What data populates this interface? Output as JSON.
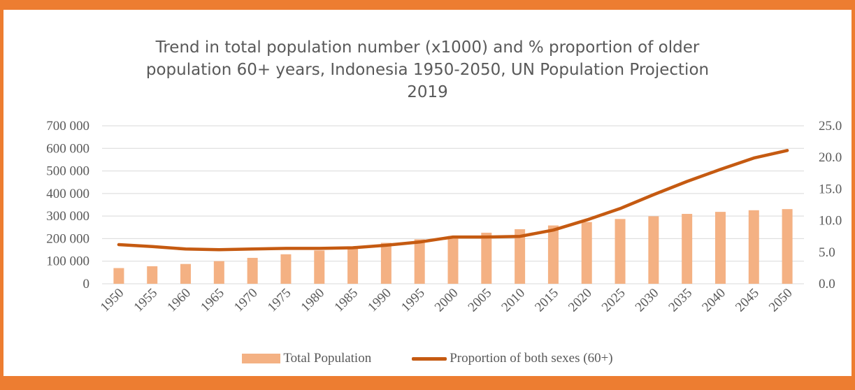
{
  "chart_data": {
    "type": "bar",
    "title_lines": [
      "Trend in total population number (x1000) and % proportion of older",
      "population 60+ years, Indonesia 1950-2050, UN Population Projection",
      "2019"
    ],
    "categories": [
      "1950",
      "1955",
      "1960",
      "1965",
      "1970",
      "1975",
      "1980",
      "1985",
      "1990",
      "1995",
      "2000",
      "2005",
      "2010",
      "2015",
      "2020",
      "2025",
      "2030",
      "2035",
      "2040",
      "2045",
      "2050"
    ],
    "series": [
      {
        "name": "Total Population",
        "type": "bar",
        "axis": "left",
        "color": "#F4B183",
        "values": [
          69543,
          77712,
          87752,
          100309,
          114793,
          130680,
          147490,
          165012,
          181413,
          196958,
          211514,
          226289,
          241834,
          258383,
          273524,
          287067,
          299198,
          309642,
          318638,
          325839,
          330905
        ]
      },
      {
        "name": "Proportion of both sexes (60+)",
        "type": "line",
        "axis": "right",
        "color": "#C55A11",
        "values": [
          6.2,
          5.9,
          5.5,
          5.4,
          5.5,
          5.6,
          5.6,
          5.7,
          6.1,
          6.6,
          7.4,
          7.4,
          7.5,
          8.5,
          10.1,
          11.9,
          14.1,
          16.2,
          18.1,
          19.9,
          21.1
        ]
      }
    ],
    "y_left": {
      "min": 0,
      "max": 700000,
      "tick_labels": [
        "0",
        "100 000",
        "200 000",
        "300 000",
        "400 000",
        "500 000",
        "600 000",
        "700 000"
      ]
    },
    "y_right": {
      "min": 0,
      "max": 25,
      "tick_labels": [
        "0.0",
        "5.0",
        "10.0",
        "15.0",
        "20.0",
        "25.0"
      ]
    },
    "grid": true,
    "legend_position": "bottom",
    "frame_color": "#ED7D31"
  }
}
